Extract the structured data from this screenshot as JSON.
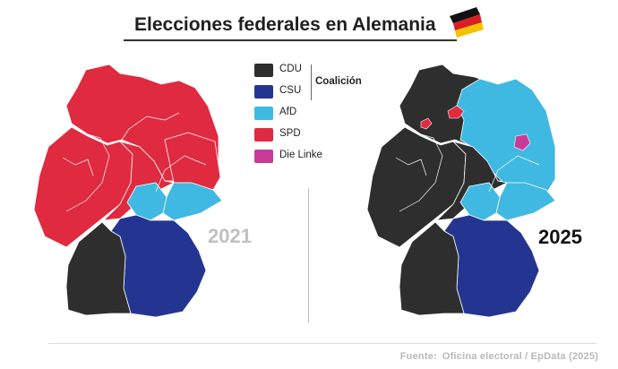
{
  "title": "Elecciones federales en Alemania",
  "flag_icon": "germany-flag-icon",
  "colors": {
    "cdu": "#2e2e2e",
    "csu": "#243591",
    "afd": "#40b9e2",
    "spd": "#df2a40",
    "linke": "#c93b99"
  },
  "legend": {
    "items": [
      {
        "key": "cdu",
        "label": "CDU"
      },
      {
        "key": "csu",
        "label": "CSU"
      },
      {
        "key": "afd",
        "label": "AfD"
      },
      {
        "key": "spd",
        "label": "SPD"
      },
      {
        "key": "linke",
        "label": "Die Linke"
      }
    ],
    "coalition_label": "Coalición"
  },
  "maps": [
    {
      "year": "2021",
      "regions": {
        "north": "spd",
        "east": "spd",
        "west": "spd",
        "center": "spd",
        "sachsen": "afd",
        "thuringen": "afd",
        "bayern": "csu",
        "bw": "cdu"
      }
    },
    {
      "year": "2025",
      "regions": {
        "north": "cdu",
        "east": "afd",
        "west": "cdu",
        "center": "cdu",
        "sachsen": "afd",
        "thuringen": "afd",
        "bayern": "csu",
        "bw": "cdu",
        "bremen": "spd",
        "hamburg": "spd",
        "berlin": "linke"
      }
    }
  ],
  "source": {
    "label": "Fuente:",
    "text": "Oficina electoral / EpData (2025)"
  }
}
